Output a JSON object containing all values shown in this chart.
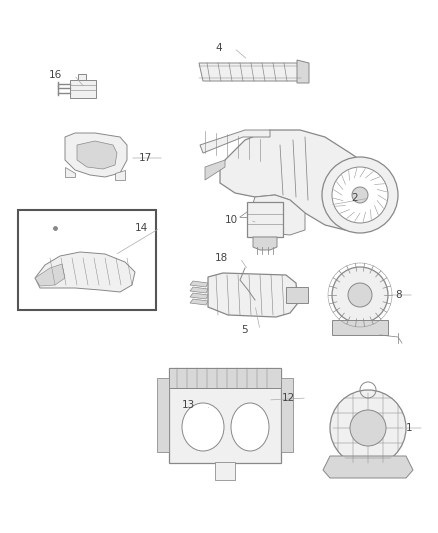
{
  "background_color": "#ffffff",
  "fig_width": 4.38,
  "fig_height": 5.33,
  "dpi": 100,
  "line_color": "#888888",
  "fill_color": "#f0f0f0",
  "dark_fill": "#d8d8d8",
  "label_color": "#444444",
  "label_fontsize": 7.5,
  "box_edgecolor": "#666666",
  "lw": 0.7
}
